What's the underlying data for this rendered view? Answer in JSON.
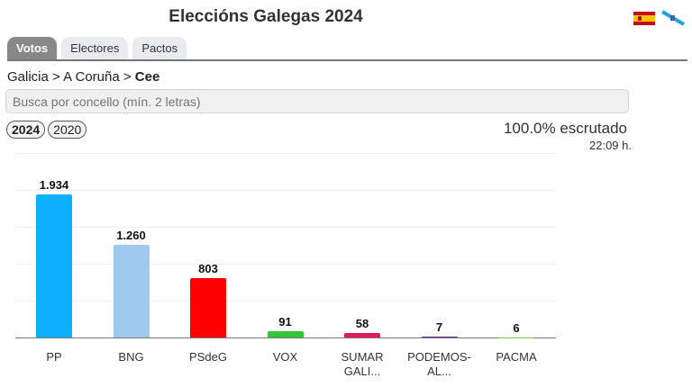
{
  "header": {
    "title": "Eleccións Galegas 2024"
  },
  "tabs": [
    {
      "label": "Votos",
      "active": true
    },
    {
      "label": "Electores",
      "active": false
    },
    {
      "label": "Pactos",
      "active": false
    }
  ],
  "breadcrumb": {
    "level1": "Galicia",
    "sep": ">",
    "level2": "A Coruña",
    "current": "Cee"
  },
  "search": {
    "placeholder": "Busca por concello (mín. 2 letras)"
  },
  "years": [
    {
      "label": "2024",
      "active": true
    },
    {
      "label": "2020",
      "active": false
    }
  ],
  "status": {
    "scrutiny": "100.0% escrutado",
    "time": "22:09 h."
  },
  "chart_data": {
    "type": "bar",
    "title": "",
    "categories": [
      "PP",
      "BNG",
      "PSdeG",
      "VOX",
      "SUMAR GALI...",
      "PODEMOS-AL...",
      "PACMA"
    ],
    "labels": [
      [
        "PP"
      ],
      [
        "BNG"
      ],
      [
        "PSdeG"
      ],
      [
        "VOX"
      ],
      [
        "SUMAR",
        "GALI..."
      ],
      [
        "PODEMOS-",
        "AL..."
      ],
      [
        "PACMA"
      ]
    ],
    "values": [
      1934,
      1260,
      803,
      91,
      58,
      7,
      6
    ],
    "value_labels": [
      "1.934",
      "1.260",
      "803",
      "91",
      "58",
      "7",
      "6"
    ],
    "colors": [
      "#0dafff",
      "#9ec9ec",
      "#ff0000",
      "#33c43a",
      "#e0195a",
      "#6b2c85",
      "#79c443"
    ],
    "ylim": [
      0,
      2500
    ],
    "grid": true,
    "xlabel": "",
    "ylabel": ""
  }
}
